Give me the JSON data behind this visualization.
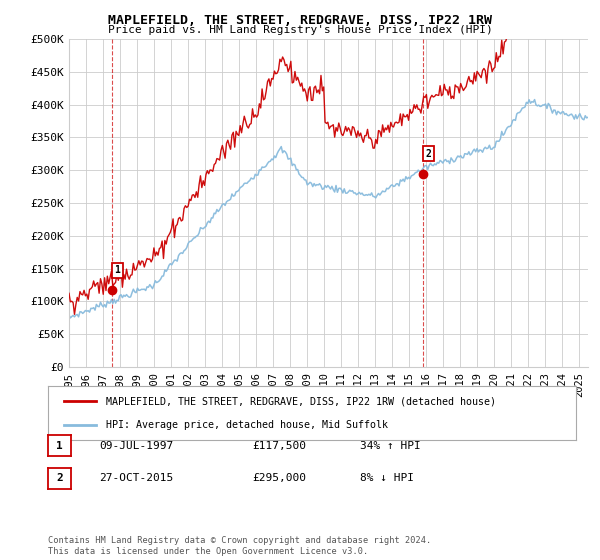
{
  "title": "MAPLEFIELD, THE STREET, REDGRAVE, DISS, IP22 1RW",
  "subtitle": "Price paid vs. HM Land Registry's House Price Index (HPI)",
  "ylim": [
    0,
    500000
  ],
  "yticks": [
    0,
    50000,
    100000,
    150000,
    200000,
    250000,
    300000,
    350000,
    400000,
    450000,
    500000
  ],
  "ytick_labels": [
    "£0",
    "£50K",
    "£100K",
    "£150K",
    "£200K",
    "£250K",
    "£300K",
    "£350K",
    "£400K",
    "£450K",
    "£500K"
  ],
  "price_color": "#cc0000",
  "hpi_color": "#88bbdd",
  "grid_color": "#cccccc",
  "bg_color": "#ffffff",
  "marker1_date": 1997.53,
  "marker1_value": 117500,
  "marker1_label": "09-JUL-1997",
  "marker1_price": "£117,500",
  "marker1_hpi": "34% ↑ HPI",
  "marker2_date": 2015.83,
  "marker2_value": 295000,
  "marker2_label": "27-OCT-2015",
  "marker2_price": "£295,000",
  "marker2_hpi": "8% ↓ HPI",
  "legend_line1": "MAPLEFIELD, THE STREET, REDGRAVE, DISS, IP22 1RW (detached house)",
  "legend_line2": "HPI: Average price, detached house, Mid Suffolk",
  "footnote": "Contains HM Land Registry data © Crown copyright and database right 2024.\nThis data is licensed under the Open Government Licence v3.0.",
  "xstart": 1995,
  "xend": 2025.5
}
